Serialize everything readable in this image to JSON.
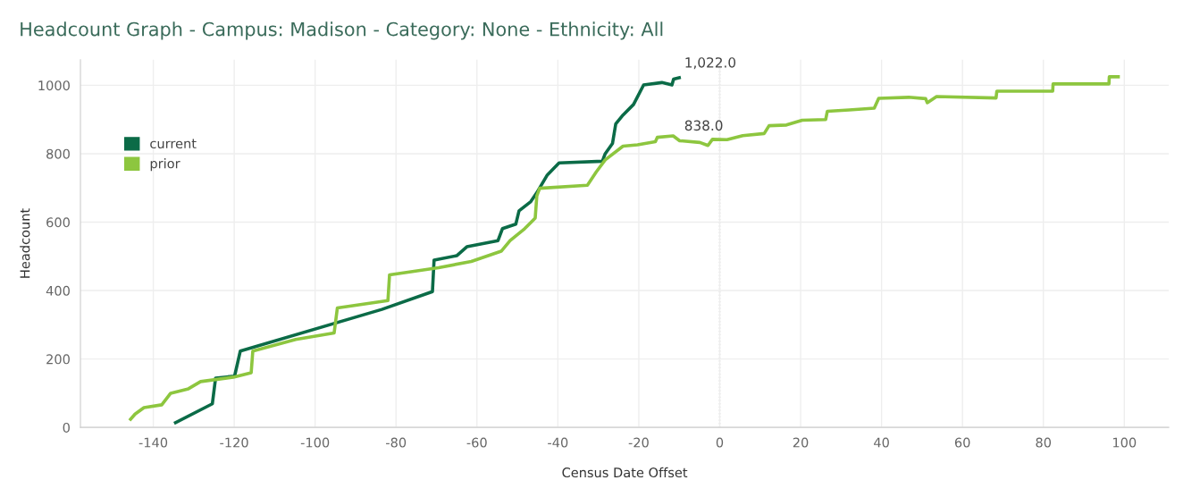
{
  "chart_data": {
    "type": "line",
    "title": "Headcount Graph - Campus: Madison - Category: None - Ethnicity: All",
    "xlabel": "Census Date Offset",
    "ylabel": "Headcount",
    "xlim": [
      -158,
      111
    ],
    "ylim": [
      0,
      1075
    ],
    "xticks": [
      -140,
      -120,
      -100,
      -80,
      -60,
      -40,
      -20,
      0,
      20,
      40,
      60,
      80,
      100
    ],
    "yticks": [
      0,
      200,
      400,
      600,
      800,
      1000
    ],
    "grid": true,
    "legend": "top left",
    "series": [
      {
        "name": "current",
        "color": "#0b6b47",
        "x": [
          -134.5,
          -125.4,
          -124.6,
          -119.9,
          -118.5,
          -83.5,
          -71,
          -70.6,
          -65,
          -62.5,
          -54.8,
          -53.7,
          -50.4,
          -49.6,
          -46.7,
          -45.2,
          -42.6,
          -39.7,
          -29,
          -28.3,
          -26.5,
          -25.7,
          -23.9,
          -21.3,
          -18.8,
          -14.3,
          -11.8,
          -11.4,
          -10
        ],
        "values": [
          14,
          69,
          144,
          150,
          223,
          345,
          397,
          489,
          502,
          528,
          546,
          581,
          594,
          633,
          660,
          686,
          738,
          773,
          778,
          800,
          830,
          887,
          913,
          944,
          1001,
          1008,
          1001,
          1018,
          1022
        ]
      },
      {
        "name": "prior",
        "color": "#8dc63f",
        "x": [
          -145.6,
          -144.5,
          -142.3,
          -137.9,
          -135.7,
          -131.3,
          -128.3,
          -120.2,
          -115.8,
          -115.4,
          -104.8,
          -95.3,
          -94.5,
          -82,
          -81.6,
          -69.5,
          -61.4,
          -54,
          -51.8,
          -48.2,
          -45.6,
          -45.2,
          -44.5,
          -32.7,
          -30.5,
          -28.3,
          -23.9,
          -20.3,
          -15.9,
          -15.4,
          -11.5,
          -9.9,
          -4.9,
          -2.9,
          -1.8,
          1.8,
          5.7,
          11,
          12.2,
          16.5,
          20.4,
          26.2,
          26.6,
          32,
          38.2,
          39.3,
          46.7,
          50.9,
          51.3,
          53.6,
          68.3,
          68.5,
          82.3,
          82.4,
          96.2,
          96.3,
          98.5
        ],
        "values": [
          24,
          39,
          58,
          66,
          100,
          113,
          134,
          147,
          160,
          223,
          257,
          276,
          349,
          371,
          446,
          467,
          485,
          515,
          546,
          581,
          612,
          677,
          699,
          708,
          747,
          782,
          822,
          826,
          835,
          848,
          852,
          838,
          833,
          824,
          842,
          841,
          853,
          859,
          882,
          884,
          898,
          900,
          924,
          928,
          933,
          962,
          965,
          961,
          949,
          967,
          963,
          983,
          983,
          1004,
          1004,
          1025,
          1025
        ]
      }
    ],
    "ref_lines": [
      {
        "axis": "x",
        "value": 0,
        "color": "#aaaaaa",
        "line_style": "dotted"
      }
    ],
    "annotations": [
      {
        "text": "1,022.0",
        "x": -10,
        "y": 1022
      },
      {
        "text": "838.0",
        "x": -10,
        "y": 838
      }
    ]
  }
}
